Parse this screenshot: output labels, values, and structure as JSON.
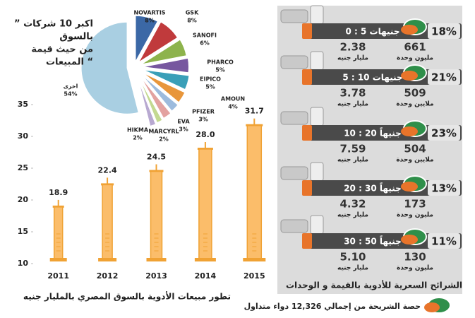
{
  "chart_data": [
    {
      "type": "pie",
      "title": [
        "” اكبر 10 شركات",
        "بالسوق",
        "من حيث قيمة",
        "المبيعات “"
      ],
      "categories": [
        "NOVARTIS",
        "GSK",
        "SANOFI",
        "PHARCO",
        "EIPICO",
        "AMOUN",
        "PFIZER",
        "EVA",
        "MARCYRL",
        "HIKMA",
        "اخرى"
      ],
      "values": [
        8,
        8,
        6,
        5,
        5,
        4,
        3,
        3,
        2,
        2,
        54
      ],
      "value_labels": [
        "8%",
        "8%",
        "6%",
        "5%",
        "5%",
        "4%",
        "3%",
        "3%",
        "2%",
        "2%",
        "54%"
      ],
      "colors": [
        "#3b68a6",
        "#c03a3c",
        "#8db34c",
        "#77579f",
        "#3a9fb8",
        "#e8963b",
        "#9dbbdd",
        "#e3a2a0",
        "#c3d991",
        "#b8a9d1",
        "#a9cfe2"
      ]
    },
    {
      "type": "bar",
      "title": "تطور مبيعات الأدوية بالسوق المصري بالمليار جنيه",
      "categories": [
        "2011",
        "2012",
        "2013",
        "2014",
        "2015"
      ],
      "values": [
        18.9,
        22.4,
        24.5,
        28.0,
        31.7
      ],
      "value_labels": [
        "18.9",
        "22.4",
        "24.5",
        "28.0",
        "31.7"
      ],
      "color": "#fbbd6a",
      "ylim": [
        10,
        35
      ],
      "yticks": [
        10,
        15,
        20,
        25,
        30,
        35
      ],
      "grid": false
    }
  ],
  "segments": {
    "title": "الشرائح السعرية للأدوية بالقيمة و الوحدات",
    "note": "حصة الشريحة من إجمالي 12,326 دواء متداول",
    "rows": [
      {
        "range": "0 : 5 جنيهات",
        "share": "18%",
        "units": "661",
        "units_label": "مليون وحدة",
        "value": "2.38",
        "value_label": "مليار جنيه"
      },
      {
        "range": "5 : 10 جنيهات",
        "share": "21%",
        "units": "509",
        "units_label": "ملايين وحدة",
        "value": "3.78",
        "value_label": "مليار جنيه"
      },
      {
        "range": "10 : 20 جنيهاً",
        "share": "23%",
        "units": "504",
        "units_label": "ملايين وحدة",
        "value": "7.59",
        "value_label": "مليار جنيه"
      },
      {
        "range": "20 : 30 جنيهاً",
        "share": "13%",
        "units": "173",
        "units_label": "مليون وحدة",
        "value": "4.32",
        "value_label": "مليار جنيه"
      },
      {
        "range": "30 : 50 جنيهاً",
        "share": "11%",
        "units": "130",
        "units_label": "مليون وحدة",
        "value": "5.10",
        "value_label": "مليار جنيه"
      }
    ]
  }
}
